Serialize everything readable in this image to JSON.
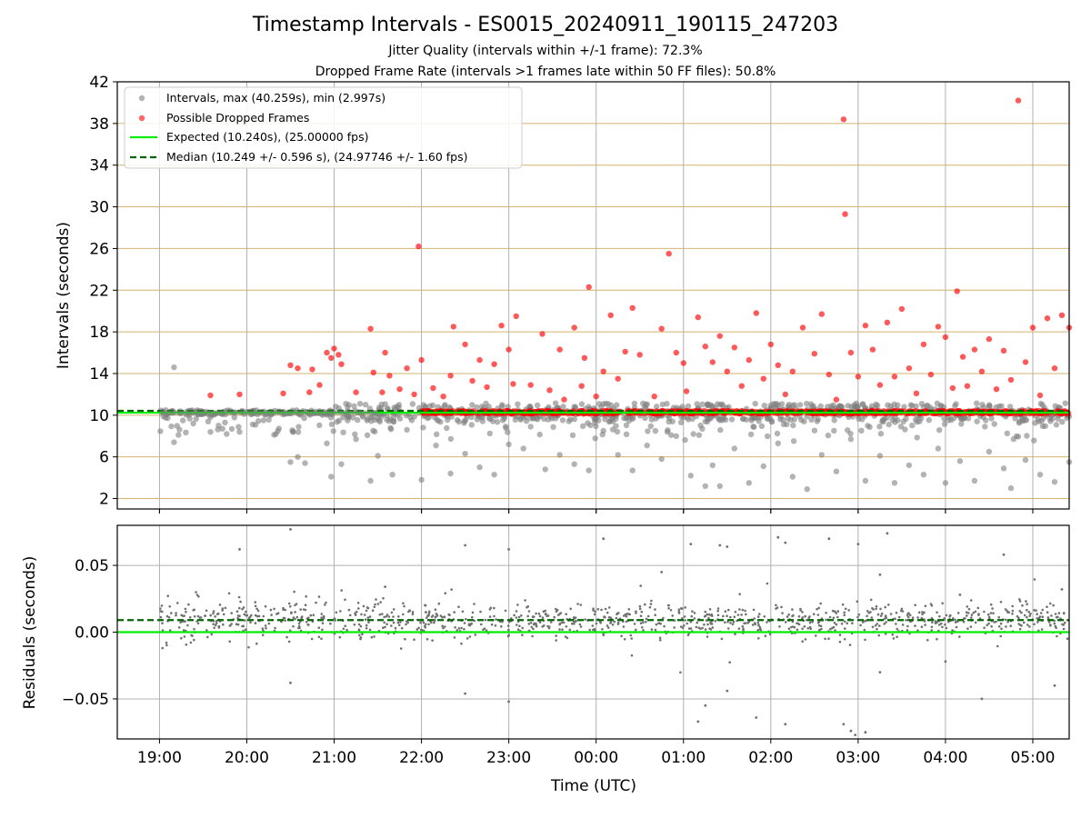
{
  "figure": {
    "title": "Timestamp Intervals - ES0015_20240911_190115_247203",
    "subtitle_1": "Jitter Quality (intervals within +/-1 frame): 72.3%",
    "subtitle_2": "Dropped Frame Rate (intervals >1 frames late within 50 FF files): 50.8%"
  },
  "chart_data": [
    {
      "type": "scatter",
      "ylabel": "Intervals (seconds)",
      "xlabel": "",
      "xlim": [
        "18:31",
        "05:25"
      ],
      "ylim": [
        1,
        42
      ],
      "y_ticks": [
        2,
        6,
        10,
        14,
        18,
        22,
        26,
        30,
        34,
        38,
        42
      ],
      "x_ticks": [
        "19:00",
        "20:00",
        "21:00",
        "22:00",
        "23:00",
        "00:00",
        "01:00",
        "02:00",
        "03:00",
        "04:00",
        "05:00"
      ],
      "grid": "vertical gray lines at time ticks; horizontal goldenrod lines at y ticks",
      "legend": {
        "placement": "top-left",
        "entries": [
          "Intervals, max (40.259s), min (2.997s)",
          "Possible Dropped Frames",
          "Expected (10.240s), (25.00000 fps)",
          "Median (10.249 +/- 0.596 s), (24.97746 +/- 1.60 fps)"
        ]
      },
      "colors": {
        "intervals": "#808080",
        "dropped": "#ff0000",
        "expected": "#00ee00",
        "median": "#006400",
        "grid_h": "#d2b470"
      },
      "series": [
        {
          "name": "Expected (10.240s), (25.00000 fps)",
          "kind": "line",
          "y": 10.24
        },
        {
          "name": "Median (10.249 +/- 0.596 s), (24.97746 +/- 1.60 fps)",
          "kind": "dashed-line",
          "y": 10.249
        },
        {
          "name": "Possible Dropped Frames",
          "kind": "scatter",
          "points": [
            [
              "19:35",
              11.9
            ],
            [
              "19:55",
              12.0
            ],
            [
              "20:25",
              12.1
            ],
            [
              "20:30",
              14.8
            ],
            [
              "20:35",
              14.5
            ],
            [
              "20:43",
              12.2
            ],
            [
              "20:45",
              14.4
            ],
            [
              "20:50",
              12.9
            ],
            [
              "20:55",
              16.0
            ],
            [
              "20:58",
              15.5
            ],
            [
              "21:00",
              16.4
            ],
            [
              "21:03",
              15.8
            ],
            [
              "21:05",
              14.9
            ],
            [
              "21:15",
              12.2
            ],
            [
              "21:25",
              18.3
            ],
            [
              "21:27",
              14.1
            ],
            [
              "21:33",
              12.2
            ],
            [
              "21:35",
              16.0
            ],
            [
              "21:38",
              13.8
            ],
            [
              "21:45",
              12.5
            ],
            [
              "21:50",
              14.5
            ],
            [
              "21:55",
              12.0
            ],
            [
              "21:58",
              26.2
            ],
            [
              "22:00",
              15.3
            ],
            [
              "22:08",
              12.6
            ],
            [
              "22:15",
              11.8
            ],
            [
              "22:20",
              13.8
            ],
            [
              "22:22",
              18.5
            ],
            [
              "22:30",
              16.8
            ],
            [
              "22:35",
              13.3
            ],
            [
              "22:40",
              15.3
            ],
            [
              "22:45",
              12.7
            ],
            [
              "22:50",
              14.9
            ],
            [
              "22:55",
              18.6
            ],
            [
              "23:00",
              16.3
            ],
            [
              "23:03",
              13.0
            ],
            [
              "23:05",
              19.5
            ],
            [
              "23:15",
              12.9
            ],
            [
              "23:23",
              17.8
            ],
            [
              "23:28",
              12.4
            ],
            [
              "23:35",
              16.3
            ],
            [
              "23:38",
              11.5
            ],
            [
              "23:45",
              18.4
            ],
            [
              "23:50",
              12.8
            ],
            [
              "23:52",
              15.5
            ],
            [
              "23:55",
              22.3
            ],
            [
              "00:00",
              11.8
            ],
            [
              "00:05",
              14.2
            ],
            [
              "00:10",
              19.6
            ],
            [
              "00:15",
              13.5
            ],
            [
              "00:20",
              16.1
            ],
            [
              "00:25",
              20.3
            ],
            [
              "00:30",
              15.8
            ],
            [
              "00:40",
              11.8
            ],
            [
              "00:45",
              18.3
            ],
            [
              "00:50",
              25.5
            ],
            [
              "00:55",
              16.0
            ],
            [
              "01:00",
              15.0
            ],
            [
              "01:02",
              12.3
            ],
            [
              "01:10",
              19.4
            ],
            [
              "01:15",
              16.6
            ],
            [
              "01:20",
              15.1
            ],
            [
              "01:25",
              17.6
            ],
            [
              "01:30",
              14.2
            ],
            [
              "01:35",
              16.5
            ],
            [
              "01:40",
              12.8
            ],
            [
              "01:45",
              15.3
            ],
            [
              "01:50",
              19.8
            ],
            [
              "01:55",
              13.5
            ],
            [
              "02:00",
              16.8
            ],
            [
              "02:05",
              14.8
            ],
            [
              "02:10",
              12.0
            ],
            [
              "02:15",
              14.2
            ],
            [
              "02:22",
              18.4
            ],
            [
              "02:30",
              15.9
            ],
            [
              "02:35",
              19.7
            ],
            [
              "02:40",
              13.9
            ],
            [
              "02:45",
              11.5
            ],
            [
              "02:50",
              38.4
            ],
            [
              "02:51",
              29.3
            ],
            [
              "02:55",
              16.0
            ],
            [
              "03:00",
              13.7
            ],
            [
              "03:05",
              18.6
            ],
            [
              "03:10",
              16.3
            ],
            [
              "03:15",
              12.9
            ],
            [
              "03:20",
              18.9
            ],
            [
              "03:25",
              13.7
            ],
            [
              "03:30",
              20.2
            ],
            [
              "03:35",
              14.5
            ],
            [
              "03:40",
              12.1
            ],
            [
              "03:45",
              16.8
            ],
            [
              "03:50",
              13.9
            ],
            [
              "03:55",
              18.5
            ],
            [
              "04:00",
              17.5
            ],
            [
              "04:05",
              12.6
            ],
            [
              "04:08",
              21.9
            ],
            [
              "04:12",
              15.6
            ],
            [
              "04:15",
              12.8
            ],
            [
              "04:20",
              16.3
            ],
            [
              "04:25",
              14.2
            ],
            [
              "04:30",
              17.3
            ],
            [
              "04:35",
              12.5
            ],
            [
              "04:40",
              16.2
            ],
            [
              "04:45",
              13.4
            ],
            [
              "04:50",
              40.2
            ],
            [
              "04:55",
              15.1
            ],
            [
              "05:00",
              18.4
            ],
            [
              "05:05",
              11.9
            ],
            [
              "05:10",
              19.3
            ],
            [
              "05:15",
              14.5
            ],
            [
              "05:20",
              19.6
            ],
            [
              "05:25",
              18.4
            ]
          ]
        },
        {
          "name": "Intervals, max (40.259s), min (2.997s)",
          "kind": "scatter",
          "points": [
            [
              "19:10",
              14.6
            ],
            [
              "19:10",
              7.4
            ],
            [
              "19:35",
              8.4
            ],
            [
              "19:45",
              9.3
            ],
            [
              "19:55",
              8.4
            ],
            [
              "20:20",
              8.2
            ],
            [
              "20:30",
              5.5
            ],
            [
              "20:35",
              6.0
            ],
            [
              "20:40",
              5.4
            ],
            [
              "20:55",
              7.3
            ],
            [
              "20:58",
              4.1
            ],
            [
              "21:05",
              5.3
            ],
            [
              "21:15",
              7.7
            ],
            [
              "21:25",
              3.7
            ],
            [
              "21:30",
              6.1
            ],
            [
              "21:40",
              4.3
            ],
            [
              "21:50",
              8.6
            ],
            [
              "22:00",
              3.8
            ],
            [
              "22:10",
              7.1
            ],
            [
              "22:20",
              4.4
            ],
            [
              "22:30",
              6.3
            ],
            [
              "22:40",
              5.0
            ],
            [
              "22:50",
              4.3
            ],
            [
              "23:00",
              7.2
            ],
            [
              "23:10",
              6.8
            ],
            [
              "23:15",
              8.9
            ],
            [
              "23:25",
              4.8
            ],
            [
              "23:35",
              6.2
            ],
            [
              "23:45",
              5.3
            ],
            [
              "23:55",
              4.7
            ],
            [
              "00:05",
              8.5
            ],
            [
              "00:15",
              6.2
            ],
            [
              "00:25",
              4.7
            ],
            [
              "00:35",
              7.1
            ],
            [
              "00:45",
              5.8
            ],
            [
              "00:55",
              8.0
            ],
            [
              "01:05",
              4.2
            ],
            [
              "01:15",
              3.2
            ],
            [
              "01:20",
              5.2
            ],
            [
              "01:25",
              3.2
            ],
            [
              "01:35",
              6.8
            ],
            [
              "01:45",
              3.5
            ],
            [
              "01:55",
              5.1
            ],
            [
              "02:05",
              7.3
            ],
            [
              "02:15",
              4.1
            ],
            [
              "02:25",
              2.9
            ],
            [
              "02:35",
              6.2
            ],
            [
              "02:45",
              4.6
            ],
            [
              "02:55",
              7.7
            ],
            [
              "03:05",
              3.7
            ],
            [
              "03:15",
              6.1
            ],
            [
              "03:25",
              3.5
            ],
            [
              "03:35",
              5.2
            ],
            [
              "03:45",
              4.3
            ],
            [
              "03:55",
              6.8
            ],
            [
              "04:00",
              3.5
            ],
            [
              "04:10",
              5.6
            ],
            [
              "04:20",
              3.7
            ],
            [
              "04:30",
              6.5
            ],
            [
              "04:40",
              4.9
            ],
            [
              "04:45",
              3.0
            ],
            [
              "04:55",
              5.7
            ],
            [
              "05:05",
              4.3
            ],
            [
              "05:15",
              3.6
            ],
            [
              "05:25",
              5.5
            ]
          ]
        }
      ]
    },
    {
      "type": "scatter",
      "ylabel": "Residuals (seconds)",
      "xlabel": "Time (UTC)",
      "xlim": [
        "18:31",
        "05:25"
      ],
      "ylim": [
        -0.08,
        0.08
      ],
      "y_ticks": [
        0.05,
        0.0,
        -0.05
      ],
      "y_tick_labels": [
        "0.05",
        "0.00",
        "−0.05"
      ],
      "x_ticks": [
        "19:00",
        "20:00",
        "21:00",
        "22:00",
        "23:00",
        "00:00",
        "01:00",
        "02:00",
        "03:00",
        "04:00",
        "05:00"
      ],
      "grid": "on",
      "colors": {
        "residuals": "#808080",
        "zero": "#00ee00",
        "median": "#006400"
      },
      "series": [
        {
          "kind": "line",
          "y": 0.0
        },
        {
          "kind": "dashed-line",
          "y": 0.009
        },
        {
          "kind": "scatter",
          "points": [
            [
              "19:55",
              0.062
            ],
            [
              "20:30",
              -0.038
            ],
            [
              "20:30",
              0.077
            ],
            [
              "21:35",
              0.034
            ],
            [
              "22:30",
              0.065
            ],
            [
              "22:30",
              -0.046
            ],
            [
              "23:00",
              0.062
            ],
            [
              "23:00",
              -0.052
            ],
            [
              "00:05",
              0.07
            ],
            [
              "00:45",
              0.045
            ],
            [
              "01:05",
              0.066
            ],
            [
              "01:10",
              -0.067
            ],
            [
              "01:15",
              -0.055
            ],
            [
              "01:25",
              0.065
            ],
            [
              "01:30",
              0.064
            ],
            [
              "01:30",
              -0.044
            ],
            [
              "01:50",
              -0.064
            ],
            [
              "02:05",
              0.071
            ],
            [
              "02:10",
              0.067
            ],
            [
              "02:10",
              -0.069
            ],
            [
              "02:40",
              0.07
            ],
            [
              "02:50",
              -0.069
            ],
            [
              "02:55",
              -0.074
            ],
            [
              "02:58",
              -0.077
            ],
            [
              "03:00",
              0.066
            ],
            [
              "03:05",
              -0.075
            ],
            [
              "03:15",
              -0.03
            ],
            [
              "03:15",
              0.043
            ],
            [
              "03:20",
              0.074
            ],
            [
              "04:00",
              -0.022
            ],
            [
              "04:10",
              0.028
            ],
            [
              "04:25",
              -0.05
            ],
            [
              "04:40",
              0.058
            ],
            [
              "05:15",
              -0.04
            ],
            [
              "05:20",
              0.032
            ]
          ]
        }
      ]
    }
  ]
}
